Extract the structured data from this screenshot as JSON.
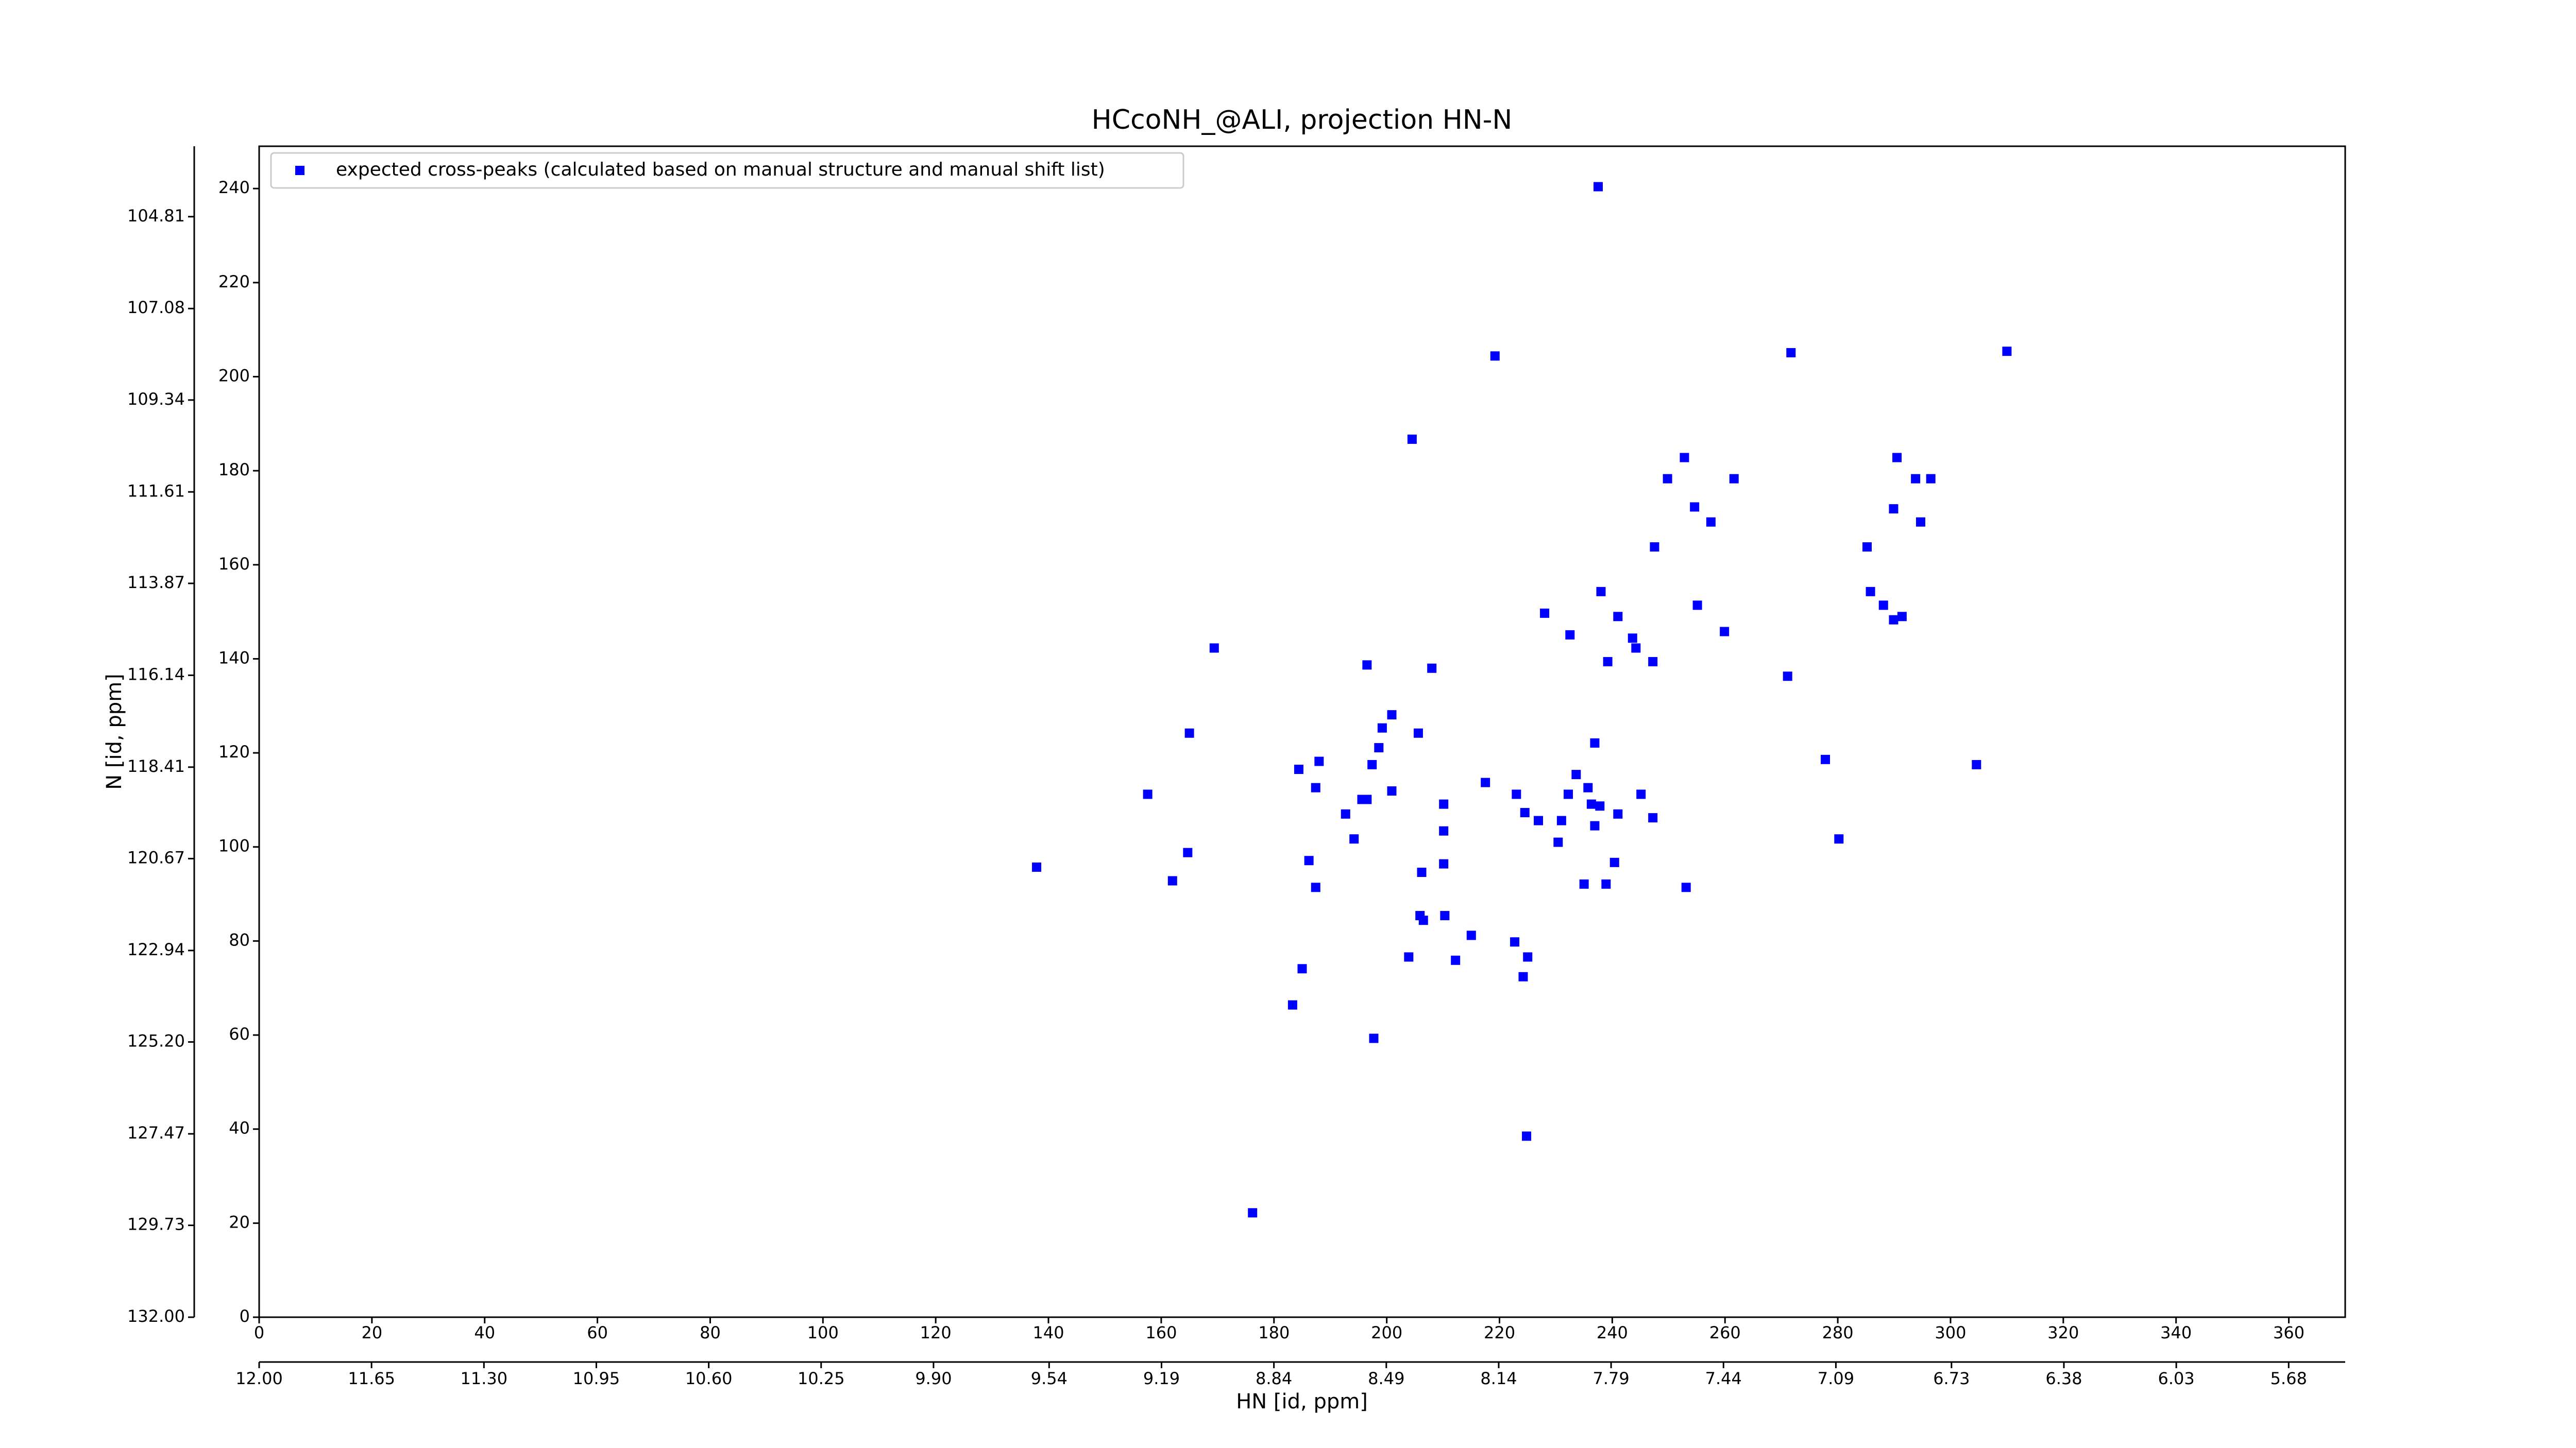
{
  "chart_data": {
    "type": "scatter",
    "title": "HCcoNH_@ALI, projection HN-N",
    "x_label": "HN [id, ppm]",
    "y_label": "N [id, ppm]",
    "legend": "upper left",
    "xlim": [
      0,
      370
    ],
    "ylim": [
      0,
      249
    ],
    "xticks": [
      0,
      20,
      40,
      60,
      80,
      100,
      120,
      140,
      160,
      180,
      200,
      220,
      240,
      260,
      280,
      300,
      320,
      340,
      360
    ],
    "yticks": [
      0,
      20,
      40,
      60,
      80,
      100,
      120,
      140,
      160,
      180,
      200,
      220,
      240
    ],
    "x2lim": [
      12,
      5.504
    ],
    "x2ticks": [
      {
        "value": 12,
        "label": "12.00"
      },
      11.65,
      {
        "value": 11.3,
        "label": "11.30"
      },
      10.95,
      {
        "value": 10.6,
        "label": "10.60"
      },
      10.25,
      {
        "value": 9.9,
        "label": "9.90"
      },
      9.54,
      9.19,
      8.84,
      8.49,
      8.14,
      7.79,
      7.44,
      7.09,
      6.73,
      6.38,
      6.03,
      5.68
    ],
    "y2lim": [
      132,
      103.07
    ],
    "y2ticks": [
      {
        "value": 132,
        "label": "132.00"
      },
      129.73,
      127.47,
      {
        "value": 125.2,
        "label": "125.20"
      },
      122.94,
      120.67,
      118.41,
      116.14,
      113.87,
      111.61,
      109.34,
      107.08,
      104.81
    ],
    "series": [
      {
        "name": "expected cross-peaks (calculated based on manual structure and manual shift list)",
        "color": "#0000ff",
        "x": [
          237.5,
          219.2,
          271.7,
          310,
          204.5,
          252.8,
          249.8,
          261.6,
          254.6,
          257.5,
          247.5,
          290.5,
          293.8,
          296.5,
          289.9,
          294.7,
          285.2,
          285.8,
          288.1,
          289.9,
          291.4,
          238,
          255.1,
          228,
          241,
          232.5,
          243.6,
          244.2,
          247.2,
          239.2,
          259.9,
          271.1,
          169.4,
          196.5,
          208,
          165,
          200.9,
          199.2,
          205.6,
          198.6,
          197.4,
          188,
          184.4,
          187.4,
          200.9,
          195.6,
          196.5,
          192.7,
          194.2,
          157.6,
          164.7,
          162,
          186.2,
          187.4,
          137.9,
          277.8,
          304.6,
          280.2,
          236.9,
          217.5,
          223,
          224.5,
          226.9,
          232.2,
          231,
          233.6,
          235.7,
          236.3,
          237.8,
          236.9,
          241,
          230.4,
          245.1,
          247.2,
          240.4,
          210.1,
          210.1,
          210.1,
          206.2,
          235,
          238.9,
          253.1,
          205.9,
          206.5,
          210.3,
          215,
          203.9,
          212.2,
          222.7,
          225,
          224.2,
          185,
          183.3,
          197.7,
          224.8,
          176.2
        ],
        "values": [
          240.4,
          204.4,
          205.1,
          205.4,
          186.7,
          182.8,
          178.3,
          178.3,
          172.3,
          169.1,
          163.8,
          182.8,
          178.3,
          178.3,
          171.9,
          169.1,
          163.8,
          154.3,
          151.4,
          148.3,
          149,
          154.3,
          151.4,
          149.7,
          149,
          145.1,
          144.4,
          142.3,
          139.4,
          139.4,
          145.8,
          136.3,
          142.3,
          138.7,
          138,
          124.2,
          128.1,
          125.3,
          124.2,
          121.1,
          117.5,
          118.2,
          116.5,
          112.6,
          111.9,
          110.1,
          110.1,
          107,
          101.7,
          111.2,
          98.8,
          92.8,
          97.1,
          91.4,
          95.7,
          118.6,
          117.5,
          101.7,
          122.1,
          113.7,
          111.2,
          107.3,
          105.6,
          111.2,
          105.6,
          115.4,
          112.6,
          109.1,
          108.7,
          104.5,
          107,
          101,
          111.2,
          106.2,
          96.7,
          109.1,
          103.4,
          96.4,
          94.6,
          92.1,
          92.1,
          91.4,
          85.4,
          84.4,
          85.4,
          81.2,
          76.6,
          75.9,
          79.8,
          76.6,
          72.4,
          74.1,
          66.4,
          59.3,
          38.5,
          22.2
        ]
      }
    ]
  }
}
